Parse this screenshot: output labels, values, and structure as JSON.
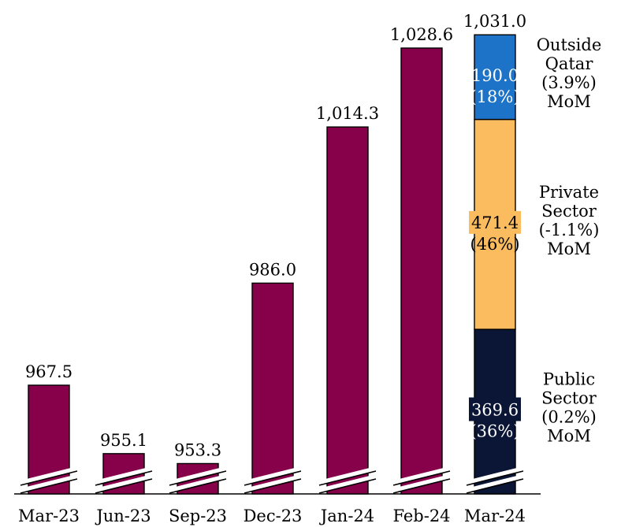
{
  "chart_data": {
    "type": "bar",
    "categories": [
      "Mar-23",
      "Jun-23",
      "Sep-23",
      "Dec-23",
      "Jan-24",
      "Feb-24",
      "Mar-24"
    ],
    "values": [
      967.5,
      955.1,
      953.3,
      986.0,
      1014.3,
      1028.6,
      1031.0
    ],
    "value_labels": [
      "967.5",
      "955.1",
      "953.3",
      "986.0",
      "1,014.3",
      "1,028.6",
      "1,031.0"
    ],
    "axis_break": true,
    "bar_color": "#86004a",
    "stacked_last": {
      "category": "Mar-24",
      "segments": [
        {
          "value": 369.6,
          "value_label": "369.6",
          "share_label": "(36%)",
          "color": "#0b1535",
          "side_lines": [
            "Public",
            "Sector",
            "(0.2%)",
            "MoM"
          ]
        },
        {
          "value": 471.4,
          "value_label": "471.4",
          "share_label": "(46%)",
          "color": "#fbbc60",
          "side_lines": [
            "Private",
            "Sector",
            "(-1.1%)",
            "MoM"
          ]
        },
        {
          "value": 190.0,
          "value_label": "190.0",
          "share_label": "(18%)",
          "color": "#1c73c7",
          "side_lines": [
            "Outside",
            "Qatar",
            "(3.9%)",
            "MoM"
          ]
        }
      ]
    }
  }
}
